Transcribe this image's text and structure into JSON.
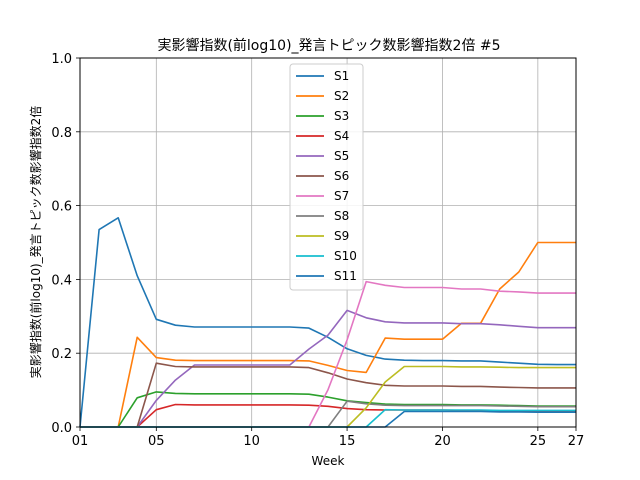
{
  "chart_data": {
    "type": "line",
    "title": "実影響指数(前log10)_発言トピック数影響指数2倍 #5",
    "xlabel": "Week",
    "ylabel": "実影響指数(前log10)_発言トピック数影響指数2倍",
    "xlim": [
      1,
      27
    ],
    "ylim": [
      0,
      1.0
    ],
    "xticks": [
      {
        "value": 1,
        "label": "01"
      },
      {
        "value": 5,
        "label": "05"
      },
      {
        "value": 10,
        "label": "10"
      },
      {
        "value": 15,
        "label": "15"
      },
      {
        "value": 20,
        "label": "20"
      },
      {
        "value": 25,
        "label": "25"
      },
      {
        "value": 27,
        "label": "27"
      }
    ],
    "yticks": [
      {
        "value": 0.0,
        "label": "0.0"
      },
      {
        "value": 0.2,
        "label": "0.2"
      },
      {
        "value": 0.4,
        "label": "0.4"
      },
      {
        "value": 0.6,
        "label": "0.6"
      },
      {
        "value": 0.8,
        "label": "0.8"
      },
      {
        "value": 1.0,
        "label": "1.0"
      }
    ],
    "grid": true,
    "legend_position": "top-center",
    "series": [
      {
        "name": "S1",
        "color": "#1f77b4",
        "points": [
          [
            1,
            0
          ],
          [
            2,
            0.535
          ],
          [
            3,
            0.567
          ],
          [
            4,
            0.41
          ],
          [
            5,
            0.292
          ],
          [
            6,
            0.276
          ],
          [
            7,
            0.271
          ],
          [
            8,
            0.271
          ],
          [
            9,
            0.271
          ],
          [
            10,
            0.271
          ],
          [
            11,
            0.271
          ],
          [
            12,
            0.271
          ],
          [
            13,
            0.268
          ],
          [
            14,
            0.243
          ],
          [
            15,
            0.212
          ],
          [
            16,
            0.194
          ],
          [
            17,
            0.184
          ],
          [
            18,
            0.181
          ],
          [
            19,
            0.18
          ],
          [
            20,
            0.18
          ],
          [
            21,
            0.179
          ],
          [
            22,
            0.179
          ],
          [
            23,
            0.176
          ],
          [
            24,
            0.173
          ],
          [
            25,
            0.17
          ],
          [
            26,
            0.169
          ],
          [
            27,
            0.169
          ]
        ]
      },
      {
        "name": "S2",
        "color": "#ff7f0e",
        "points": [
          [
            1,
            0
          ],
          [
            2,
            0
          ],
          [
            3,
            0
          ],
          [
            4,
            0.243
          ],
          [
            5,
            0.188
          ],
          [
            6,
            0.181
          ],
          [
            7,
            0.18
          ],
          [
            8,
            0.18
          ],
          [
            9,
            0.18
          ],
          [
            10,
            0.18
          ],
          [
            11,
            0.18
          ],
          [
            12,
            0.18
          ],
          [
            13,
            0.179
          ],
          [
            14,
            0.167
          ],
          [
            15,
            0.153
          ],
          [
            16,
            0.148
          ],
          [
            17,
            0.241
          ],
          [
            18,
            0.238
          ],
          [
            19,
            0.238
          ],
          [
            20,
            0.238
          ],
          [
            21,
            0.281
          ],
          [
            22,
            0.281
          ],
          [
            23,
            0.374
          ],
          [
            24,
            0.42
          ],
          [
            25,
            0.5
          ],
          [
            26,
            0.5
          ],
          [
            27,
            0.5
          ]
        ]
      },
      {
        "name": "S3",
        "color": "#2ca02c",
        "points": [
          [
            1,
            0
          ],
          [
            2,
            0
          ],
          [
            3,
            0
          ],
          [
            4,
            0.079
          ],
          [
            5,
            0.095
          ],
          [
            6,
            0.091
          ],
          [
            7,
            0.09
          ],
          [
            8,
            0.09
          ],
          [
            9,
            0.09
          ],
          [
            10,
            0.09
          ],
          [
            11,
            0.09
          ],
          [
            12,
            0.09
          ],
          [
            13,
            0.089
          ],
          [
            14,
            0.081
          ],
          [
            15,
            0.071
          ],
          [
            16,
            0.066
          ],
          [
            17,
            0.062
          ],
          [
            18,
            0.061
          ],
          [
            19,
            0.061
          ],
          [
            20,
            0.061
          ],
          [
            21,
            0.06
          ],
          [
            22,
            0.06
          ],
          [
            23,
            0.059
          ],
          [
            24,
            0.058
          ],
          [
            25,
            0.057
          ],
          [
            26,
            0.057
          ],
          [
            27,
            0.057
          ]
        ]
      },
      {
        "name": "S4",
        "color": "#d62728",
        "points": [
          [
            1,
            0
          ],
          [
            2,
            0
          ],
          [
            3,
            0
          ],
          [
            4,
            0
          ],
          [
            5,
            0.047
          ],
          [
            6,
            0.061
          ],
          [
            7,
            0.06
          ],
          [
            8,
            0.06
          ],
          [
            9,
            0.06
          ],
          [
            10,
            0.06
          ],
          [
            11,
            0.06
          ],
          [
            12,
            0.06
          ],
          [
            13,
            0.059
          ],
          [
            14,
            0.056
          ],
          [
            15,
            0.05
          ],
          [
            16,
            0.047
          ],
          [
            17,
            0.046
          ],
          [
            18,
            0.046
          ],
          [
            19,
            0.046
          ],
          [
            20,
            0.046
          ],
          [
            21,
            0.045
          ],
          [
            22,
            0.045
          ],
          [
            23,
            0.044
          ],
          [
            24,
            0.044
          ],
          [
            25,
            0.043
          ],
          [
            26,
            0.043
          ],
          [
            27,
            0.043
          ]
        ]
      },
      {
        "name": "S5",
        "color": "#9467bd",
        "points": [
          [
            1,
            0
          ],
          [
            2,
            0
          ],
          [
            3,
            0
          ],
          [
            4,
            0
          ],
          [
            5,
            0.072
          ],
          [
            6,
            0.127
          ],
          [
            7,
            0.168
          ],
          [
            8,
            0.168
          ],
          [
            9,
            0.168
          ],
          [
            10,
            0.168
          ],
          [
            11,
            0.168
          ],
          [
            12,
            0.168
          ],
          [
            13,
            0.211
          ],
          [
            14,
            0.249
          ],
          [
            15,
            0.316
          ],
          [
            16,
            0.296
          ],
          [
            17,
            0.285
          ],
          [
            18,
            0.282
          ],
          [
            19,
            0.282
          ],
          [
            20,
            0.282
          ],
          [
            21,
            0.28
          ],
          [
            22,
            0.28
          ],
          [
            23,
            0.277
          ],
          [
            24,
            0.273
          ],
          [
            25,
            0.269
          ],
          [
            26,
            0.269
          ],
          [
            27,
            0.269
          ]
        ]
      },
      {
        "name": "S6",
        "color": "#8c564b",
        "points": [
          [
            1,
            0
          ],
          [
            2,
            0
          ],
          [
            3,
            0
          ],
          [
            4,
            0
          ],
          [
            5,
            0.173
          ],
          [
            6,
            0.164
          ],
          [
            7,
            0.163
          ],
          [
            8,
            0.163
          ],
          [
            9,
            0.163
          ],
          [
            10,
            0.163
          ],
          [
            11,
            0.163
          ],
          [
            12,
            0.163
          ],
          [
            13,
            0.161
          ],
          [
            14,
            0.147
          ],
          [
            15,
            0.13
          ],
          [
            16,
            0.12
          ],
          [
            17,
            0.113
          ],
          [
            18,
            0.111
          ],
          [
            19,
            0.111
          ],
          [
            20,
            0.111
          ],
          [
            21,
            0.11
          ],
          [
            22,
            0.11
          ],
          [
            23,
            0.108
          ],
          [
            24,
            0.107
          ],
          [
            25,
            0.106
          ],
          [
            26,
            0.106
          ],
          [
            27,
            0.106
          ]
        ]
      },
      {
        "name": "S7",
        "color": "#e377c2",
        "points": [
          [
            1,
            0
          ],
          [
            2,
            0
          ],
          [
            3,
            0
          ],
          [
            4,
            0
          ],
          [
            5,
            0
          ],
          [
            6,
            0
          ],
          [
            7,
            0
          ],
          [
            8,
            0
          ],
          [
            9,
            0
          ],
          [
            10,
            0
          ],
          [
            11,
            0
          ],
          [
            12,
            0
          ],
          [
            13,
            0
          ],
          [
            14,
            0.101
          ],
          [
            15,
            0.236
          ],
          [
            16,
            0.394
          ],
          [
            17,
            0.384
          ],
          [
            18,
            0.378
          ],
          [
            19,
            0.378
          ],
          [
            20,
            0.378
          ],
          [
            21,
            0.374
          ],
          [
            22,
            0.374
          ],
          [
            23,
            0.368
          ],
          [
            24,
            0.366
          ],
          [
            25,
            0.363
          ],
          [
            26,
            0.363
          ],
          [
            27,
            0.363
          ]
        ]
      },
      {
        "name": "S8",
        "color": "#7f7f7f",
        "points": [
          [
            1,
            0
          ],
          [
            2,
            0
          ],
          [
            3,
            0
          ],
          [
            4,
            0
          ],
          [
            5,
            0
          ],
          [
            6,
            0
          ],
          [
            7,
            0
          ],
          [
            8,
            0
          ],
          [
            9,
            0
          ],
          [
            10,
            0
          ],
          [
            11,
            0
          ],
          [
            12,
            0
          ],
          [
            13,
            0
          ],
          [
            14,
            0
          ],
          [
            15,
            0.07
          ],
          [
            16,
            0.063
          ],
          [
            17,
            0.059
          ],
          [
            18,
            0.058
          ],
          [
            19,
            0.058
          ],
          [
            20,
            0.058
          ],
          [
            21,
            0.058
          ],
          [
            22,
            0.058
          ],
          [
            23,
            0.057
          ],
          [
            24,
            0.056
          ],
          [
            25,
            0.055
          ],
          [
            26,
            0.055
          ],
          [
            27,
            0.055
          ]
        ]
      },
      {
        "name": "S9",
        "color": "#bcbd22",
        "points": [
          [
            1,
            0
          ],
          [
            2,
            0
          ],
          [
            3,
            0
          ],
          [
            4,
            0
          ],
          [
            5,
            0
          ],
          [
            6,
            0
          ],
          [
            7,
            0
          ],
          [
            8,
            0
          ],
          [
            9,
            0
          ],
          [
            10,
            0
          ],
          [
            11,
            0
          ],
          [
            12,
            0
          ],
          [
            13,
            0
          ],
          [
            14,
            0
          ],
          [
            15,
            0
          ],
          [
            16,
            0.052
          ],
          [
            17,
            0.122
          ],
          [
            18,
            0.164
          ],
          [
            19,
            0.164
          ],
          [
            20,
            0.164
          ],
          [
            21,
            0.163
          ],
          [
            22,
            0.163
          ],
          [
            23,
            0.162
          ],
          [
            24,
            0.161
          ],
          [
            25,
            0.161
          ],
          [
            26,
            0.161
          ],
          [
            27,
            0.161
          ]
        ]
      },
      {
        "name": "S10",
        "color": "#17becf",
        "points": [
          [
            1,
            0
          ],
          [
            2,
            0
          ],
          [
            3,
            0
          ],
          [
            4,
            0
          ],
          [
            5,
            0
          ],
          [
            6,
            0
          ],
          [
            7,
            0
          ],
          [
            8,
            0
          ],
          [
            9,
            0
          ],
          [
            10,
            0
          ],
          [
            11,
            0
          ],
          [
            12,
            0
          ],
          [
            13,
            0
          ],
          [
            14,
            0
          ],
          [
            15,
            0
          ],
          [
            16,
            0
          ],
          [
            17,
            0.047
          ],
          [
            18,
            0.046
          ],
          [
            19,
            0.046
          ],
          [
            20,
            0.046
          ],
          [
            21,
            0.046
          ],
          [
            22,
            0.046
          ],
          [
            23,
            0.045
          ],
          [
            24,
            0.045
          ],
          [
            25,
            0.045
          ],
          [
            26,
            0.045
          ],
          [
            27,
            0.045
          ]
        ]
      },
      {
        "name": "S11",
        "color": "#1f77b4",
        "points": [
          [
            1,
            0
          ],
          [
            2,
            0
          ],
          [
            3,
            0
          ],
          [
            4,
            0
          ],
          [
            5,
            0
          ],
          [
            6,
            0
          ],
          [
            7,
            0
          ],
          [
            8,
            0
          ],
          [
            9,
            0
          ],
          [
            10,
            0
          ],
          [
            11,
            0
          ],
          [
            12,
            0
          ],
          [
            13,
            0
          ],
          [
            14,
            0
          ],
          [
            15,
            0
          ],
          [
            16,
            0
          ],
          [
            17,
            0
          ],
          [
            18,
            0.042
          ],
          [
            19,
            0.042
          ],
          [
            20,
            0.042
          ],
          [
            21,
            0.042
          ],
          [
            22,
            0.042
          ],
          [
            23,
            0.041
          ],
          [
            24,
            0.041
          ],
          [
            25,
            0.04
          ],
          [
            26,
            0.04
          ],
          [
            27,
            0.04
          ]
        ]
      }
    ]
  }
}
